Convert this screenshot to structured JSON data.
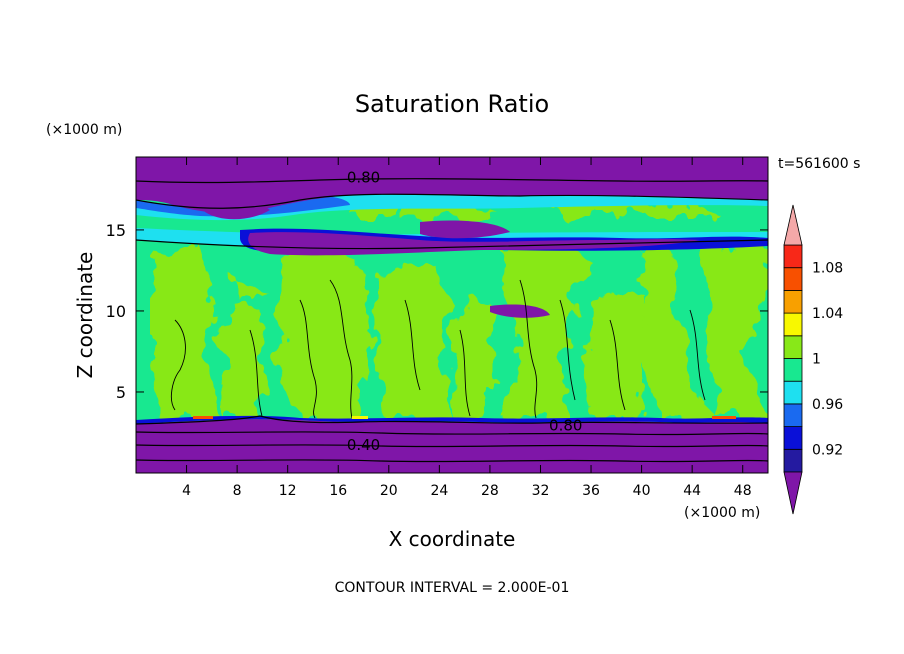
{
  "chart_data": {
    "type": "contour",
    "title": "Saturation Ratio",
    "xlabel": "X coordinate",
    "ylabel": "Z coordinate",
    "x_unit": "(×1000 m)",
    "y_unit": "(×1000 m)",
    "time_label": "t=561600 s",
    "footer": "CONTOUR INTERVAL = 2.000E-01",
    "xlim": [
      0,
      50
    ],
    "ylim": [
      0,
      19.5
    ],
    "x_ticks": [
      4,
      8,
      12,
      16,
      20,
      24,
      28,
      32,
      36,
      40,
      44,
      48
    ],
    "y_ticks": [
      5,
      10,
      15
    ],
    "contour_labels": [
      {
        "text": "0.80",
        "x": 18,
        "y": 18.3
      },
      {
        "text": "0.80",
        "x": 34,
        "y": 3.0
      },
      {
        "text": "0.40",
        "x": 18,
        "y": 1.8
      }
    ],
    "colorbar": {
      "levels": [
        0.9,
        0.92,
        0.94,
        0.96,
        0.98,
        1.0,
        1.02,
        1.04,
        1.06,
        1.08,
        1.1
      ],
      "tick_labels": [
        "0.92",
        "0.96",
        "1",
        "1.04",
        "1.08"
      ],
      "tick_values": [
        0.92,
        0.96,
        1.0,
        1.04,
        1.08
      ],
      "colors": [
        "#7f16a8",
        "#241aa0",
        "#0a10d8",
        "#1a6af0",
        "#1ee0f0",
        "#18e890",
        "#88e818",
        "#f8f800",
        "#f8a000",
        "#f85000",
        "#f82818"
      ],
      "under_color": "#7f16a8",
      "over_color": "#f4a8a8"
    }
  }
}
